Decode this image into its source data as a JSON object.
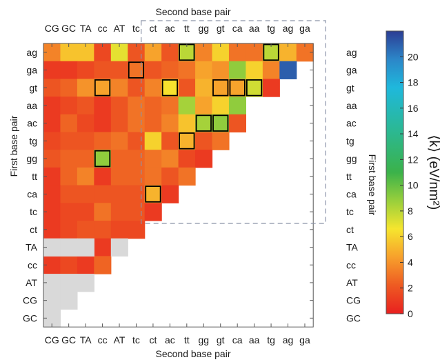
{
  "chart_data": {
    "type": "heatmap",
    "xlabel_top": "Second base pair",
    "xlabel_bottom": "Second base pair",
    "ylabel_left": "First base pair",
    "ylabel_right": "First base pair",
    "x_categories": [
      "CG",
      "GC",
      "TA",
      "cc",
      "AT",
      "tc",
      "ct",
      "ac",
      "tt",
      "gg",
      "gt",
      "ca",
      "aa",
      "tg",
      "ag",
      "ga"
    ],
    "y_categories": [
      "ag",
      "ga",
      "gt",
      "aa",
      "ac",
      "tg",
      "gg",
      "tt",
      "ca",
      "tc",
      "ct",
      "TA",
      "cc",
      "AT",
      "CG",
      "GC"
    ],
    "colorbar": {
      "label": "⟨k⟩ (eV/nm²)",
      "min": 0,
      "max": 22,
      "ticks": [
        0,
        2,
        4,
        6,
        8,
        10,
        12,
        14,
        16,
        18,
        20
      ],
      "tick_labels": [
        "0",
        "2",
        "4",
        "6",
        "8",
        "10",
        "12",
        "14",
        "16",
        "18",
        "20"
      ]
    },
    "missing_color": "#d9d9d9",
    "values": [
      [
        3.5,
        5.5,
        5.5,
        1.5,
        7,
        2,
        4.5,
        2,
        8,
        3.5,
        6,
        3,
        3,
        8,
        5,
        3
      ],
      [
        1,
        1,
        1.5,
        2,
        2,
        3,
        2,
        2.5,
        3,
        4.5,
        4,
        9,
        6,
        3.5,
        21,
        null
      ],
      [
        2,
        2.5,
        4,
        4.5,
        3.5,
        2,
        3.5,
        6.5,
        2,
        5,
        4.5,
        4.5,
        7.5,
        1,
        null,
        null
      ],
      [
        1,
        1.5,
        2,
        1,
        2,
        3,
        2.5,
        3,
        8.5,
        4.5,
        6,
        9,
        null,
        null,
        null,
        null
      ],
      [
        1,
        2.5,
        1.5,
        1,
        2,
        3,
        2.5,
        3.5,
        5.5,
        8.5,
        9,
        2,
        null,
        null,
        null,
        null
      ],
      [
        1.5,
        2,
        2,
        2.5,
        3,
        2,
        6,
        2,
        5,
        2,
        3,
        null,
        null,
        null,
        null,
        null
      ],
      [
        2,
        2.5,
        2.5,
        9,
        2.5,
        2.5,
        3,
        3.5,
        1.5,
        1,
        null,
        null,
        null,
        null,
        null,
        null
      ],
      [
        1,
        2.5,
        3.5,
        1,
        2.5,
        2.5,
        3,
        2,
        3,
        null,
        null,
        null,
        null,
        null,
        null,
        null
      ],
      [
        1,
        2,
        2,
        2,
        2,
        2,
        5,
        1,
        null,
        null,
        null,
        null,
        null,
        null,
        null,
        null
      ],
      [
        1,
        1.5,
        1.5,
        3,
        2,
        2,
        1,
        null,
        null,
        null,
        null,
        null,
        null,
        null,
        null,
        null
      ],
      [
        1,
        1.5,
        2,
        2,
        1.5,
        1.5,
        null,
        null,
        null,
        null,
        null,
        null,
        null,
        null,
        null,
        null
      ],
      [
        null,
        null,
        null,
        1,
        null,
        null,
        null,
        null,
        null,
        null,
        null,
        null,
        null,
        null,
        null,
        null
      ],
      [
        1,
        1.5,
        1,
        2.5,
        null,
        null,
        null,
        null,
        null,
        null,
        null,
        null,
        null,
        null,
        null,
        null
      ],
      [
        null,
        null,
        null,
        null,
        null,
        null,
        null,
        null,
        null,
        null,
        null,
        null,
        null,
        null,
        null,
        null
      ],
      [
        null,
        null,
        null,
        null,
        null,
        null,
        null,
        null,
        null,
        null,
        null,
        null,
        null,
        null,
        null,
        null
      ],
      [
        null,
        null,
        null,
        null,
        null,
        null,
        null,
        null,
        null,
        null,
        null,
        null,
        null,
        null,
        null,
        null
      ]
    ],
    "grey_cells": [
      [
        11,
        0
      ],
      [
        11,
        1
      ],
      [
        11,
        2
      ],
      [
        11,
        4
      ],
      [
        13,
        0
      ],
      [
        13,
        1
      ],
      [
        13,
        2
      ],
      [
        14,
        0
      ],
      [
        14,
        1
      ],
      [
        15,
        0
      ]
    ],
    "highlighted_cells": [
      [
        0,
        8
      ],
      [
        0,
        13
      ],
      [
        1,
        5
      ],
      [
        2,
        3
      ],
      [
        2,
        7
      ],
      [
        2,
        10
      ],
      [
        2,
        11
      ],
      [
        2,
        12
      ],
      [
        4,
        9
      ],
      [
        4,
        10
      ],
      [
        5,
        8
      ],
      [
        6,
        3
      ],
      [
        8,
        6
      ]
    ],
    "dashed_region": {
      "col_start": 6,
      "col_end": 15,
      "row_start": 0,
      "row_end": 9
    }
  }
}
